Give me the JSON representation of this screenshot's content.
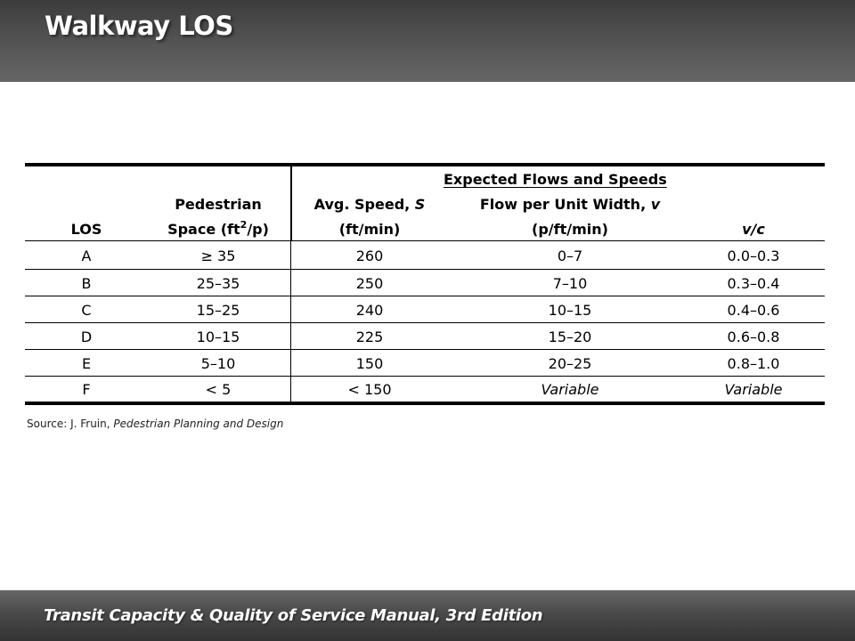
{
  "header": {
    "title": "Walkway LOS"
  },
  "table": {
    "group_header": "Expected Flows and Speeds",
    "columns": {
      "los": "LOS",
      "space_line1": "Pedestrian",
      "space_line2_a": "Space (ft",
      "space_line2_sup": "2",
      "space_line2_b": "/p)",
      "speed_line1_a": "Avg. Speed, ",
      "speed_line1_var": "S",
      "speed_line2": "(ft/min)",
      "flow_line1_a": "Flow per Unit Width, ",
      "flow_line1_var": "v",
      "flow_line2": "(p/ft/min)",
      "vc": "v/c"
    },
    "rows": [
      {
        "los": "A",
        "space": "≥ 35",
        "speed": "260",
        "flow": "0–7",
        "vc": "0.0–0.3"
      },
      {
        "los": "B",
        "space": "25–35",
        "speed": "250",
        "flow": "7–10",
        "vc": "0.3–0.4"
      },
      {
        "los": "C",
        "space": "15–25",
        "speed": "240",
        "flow": "10–15",
        "vc": "0.4–0.6"
      },
      {
        "los": "D",
        "space": "10–15",
        "speed": "225",
        "flow": "15–20",
        "vc": "0.6–0.8"
      },
      {
        "los": "E",
        "space": "5–10",
        "speed": "150",
        "flow": "20–25",
        "vc": "0.8–1.0"
      },
      {
        "los": "F",
        "space": "< 5",
        "speed": "< 150",
        "flow": "Variable",
        "vc": "Variable"
      }
    ]
  },
  "source": {
    "prefix": "Source: J. Fruin, ",
    "title": "Pedestrian Planning and Design"
  },
  "footer": {
    "text": "Transit Capacity & Quality of Service Manual, 3rd Edition"
  }
}
